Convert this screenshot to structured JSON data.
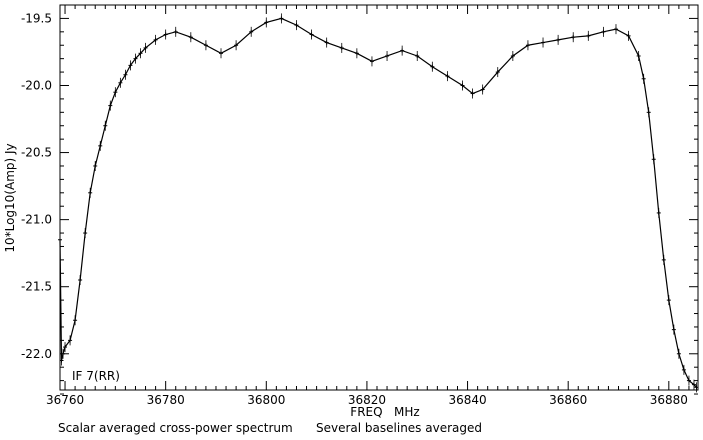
{
  "chart_data": {
    "type": "line",
    "xlabel": "FREQ   MHz",
    "ylabel": "10*Log10(Amp) Jy",
    "panel_label": "IF 7(RR)",
    "xlim": [
      36759,
      36885.8
    ],
    "ylim": [
      -22.27,
      -19.4
    ],
    "x_ticks": [
      36760,
      36780,
      36800,
      36820,
      36840,
      36860,
      36880
    ],
    "y_ticks": [
      -19.5,
      -20.0,
      -20.5,
      -21.0,
      -21.5,
      -22.0
    ],
    "x_tick_labels": [
      "36760",
      "36780",
      "36800",
      "36820",
      "36840",
      "36860",
      "36880"
    ],
    "y_tick_labels": [
      "-19.5",
      "-20.0",
      "-20.5",
      "-21.0",
      "-21.5",
      "-22.0"
    ],
    "grid": false,
    "series": [
      {
        "markers": "plus-with-error-bars",
        "x": [
          36759.0,
          36759.3,
          36759.6,
          36760.0,
          36761.0,
          36762.0,
          36763.0,
          36764.0,
          36765.0,
          36766.0,
          36767.0,
          36768.0,
          36769.0,
          36770.0,
          36771.0,
          36772.0,
          36773.0,
          36774.0,
          36775.0,
          36776.0,
          36778.0,
          36780.0,
          36782.0,
          36785.0,
          36788.0,
          36791.0,
          36794.0,
          36797.0,
          36800.0,
          36803.0,
          36806.0,
          36809.0,
          36812.0,
          36815.0,
          36818.0,
          36821.0,
          36824.0,
          36827.0,
          36830.0,
          36833.0,
          36836.0,
          36839.0,
          36841.0,
          36843.0,
          36846.0,
          36849.0,
          36852.0,
          36855.0,
          36858.0,
          36861.0,
          36864.0,
          36867.0,
          36869.5,
          36872.0,
          36874.0,
          36875.0,
          36876.0,
          36877.0,
          36878.0,
          36879.0,
          36880.0,
          36881.0,
          36882.0,
          36883.0,
          36884.0,
          36885.0,
          36885.5
        ],
        "y": [
          -21.15,
          -22.05,
          -22.0,
          -21.95,
          -21.9,
          -21.75,
          -21.45,
          -21.1,
          -20.8,
          -20.6,
          -20.45,
          -20.3,
          -20.15,
          -20.05,
          -19.98,
          -19.92,
          -19.85,
          -19.8,
          -19.76,
          -19.72,
          -19.66,
          -19.62,
          -19.6,
          -19.64,
          -19.7,
          -19.76,
          -19.7,
          -19.6,
          -19.53,
          -19.5,
          -19.55,
          -19.62,
          -19.68,
          -19.72,
          -19.76,
          -19.82,
          -19.78,
          -19.74,
          -19.78,
          -19.86,
          -19.93,
          -20.0,
          -20.06,
          -20.03,
          -19.9,
          -19.78,
          -19.7,
          -19.68,
          -19.66,
          -19.64,
          -19.63,
          -19.6,
          -19.58,
          -19.63,
          -19.78,
          -19.95,
          -20.2,
          -20.55,
          -20.95,
          -21.3,
          -21.6,
          -21.82,
          -22.0,
          -22.12,
          -22.2,
          -22.23,
          -22.25
        ]
      }
    ]
  },
  "caption": {
    "left": "Scalar averaged cross-power spectrum",
    "right": "Several baselines averaged"
  }
}
